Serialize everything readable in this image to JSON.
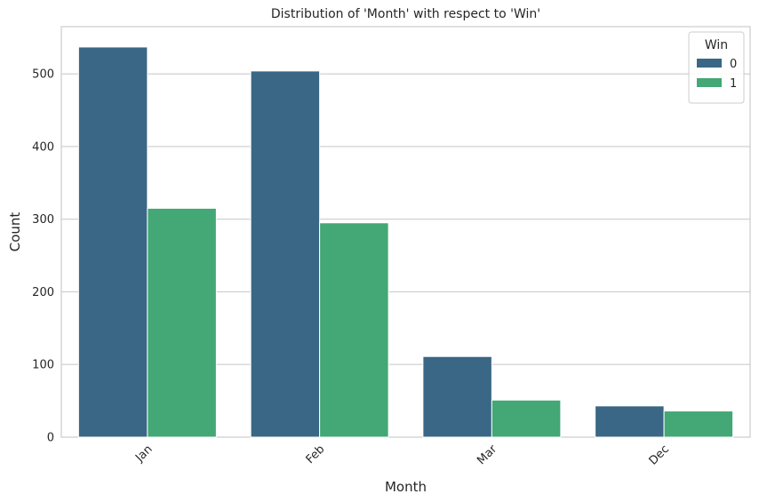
{
  "chart_data": {
    "type": "bar",
    "title": "Distribution of 'Month' with respect to 'Win'",
    "xlabel": "Month",
    "ylabel": "Count",
    "categories": [
      "Jan",
      "Feb",
      "Mar",
      "Dec"
    ],
    "series": [
      {
        "name": "0",
        "values": [
          537,
          504,
          111,
          43
        ],
        "color": "#3b6786"
      },
      {
        "name": "1",
        "values": [
          315,
          295,
          51,
          36
        ],
        "color": "#43a776"
      }
    ],
    "ylim": [
      0,
      565
    ],
    "yticks": [
      0,
      100,
      200,
      300,
      400,
      500
    ],
    "grid": "horizontal",
    "legend": {
      "title": "Win",
      "position": "top-right"
    },
    "colors": {
      "grid": "#cccccc",
      "axes": "#cccccc",
      "text": "#262626"
    }
  }
}
